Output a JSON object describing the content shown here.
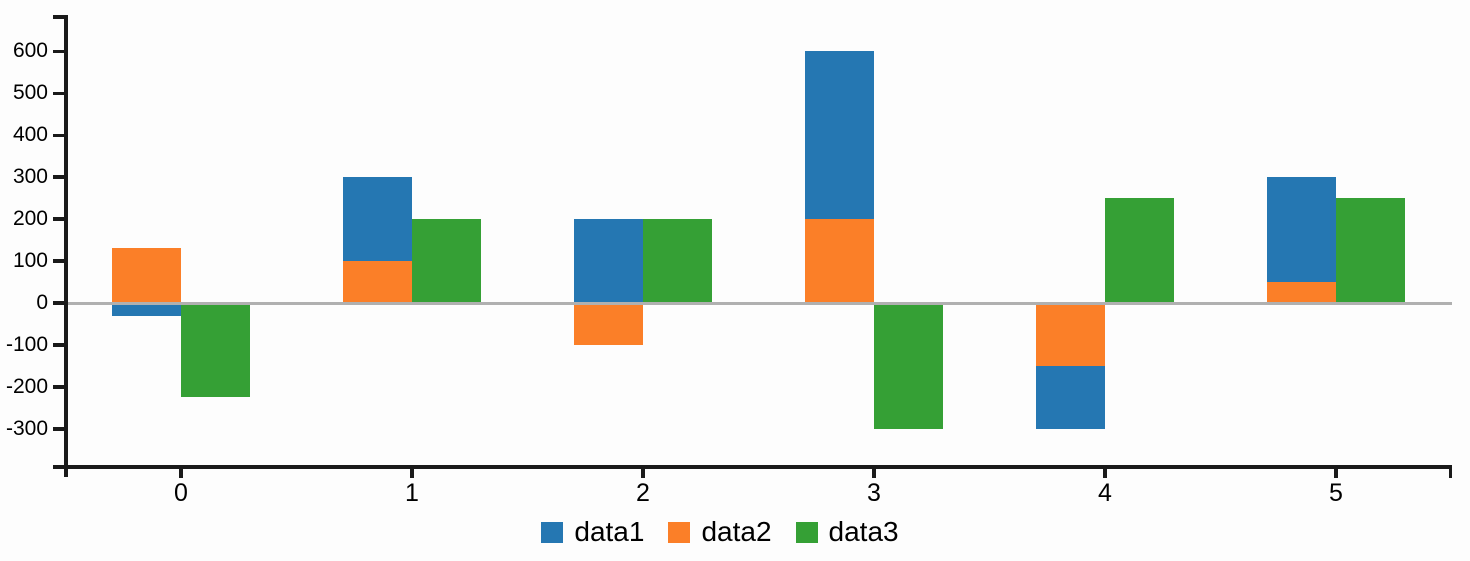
{
  "chart_data": {
    "type": "bar",
    "title": "",
    "xlabel": "",
    "ylabel": "",
    "categories": [
      "0",
      "1",
      "2",
      "3",
      "4",
      "5"
    ],
    "series": [
      {
        "name": "data1",
        "color": "#2577b2",
        "stack": "A",
        "values": [
          -30,
          200,
          200,
          400,
          -150,
          250
        ]
      },
      {
        "name": "data2",
        "color": "#fb7f28",
        "stack": "A",
        "values": [
          130,
          100,
          -100,
          200,
          -150,
          50
        ]
      },
      {
        "name": "data3",
        "color": "#35a035",
        "stack": "B",
        "values": [
          -225,
          200,
          200,
          -300,
          250,
          250
        ]
      }
    ],
    "stacking_note": "data1 and data2 form one stacked bar per category (data2 drawn from zero, data1 stacked outward beyond it); data3 is a separate bar to the right of the stack",
    "yticks": [
      600,
      500,
      400,
      300,
      200,
      100,
      0,
      -100,
      -200,
      -300
    ],
    "ylim": [
      -390,
      685
    ],
    "grid": false,
    "zero_line": true,
    "zero_line_color": "#b0b0b0",
    "axis_color": "#1a1a1a",
    "background": "#fdfdfd",
    "legend_position": "bottom-center",
    "legend_entries": [
      "data1",
      "data2",
      "data3"
    ]
  }
}
